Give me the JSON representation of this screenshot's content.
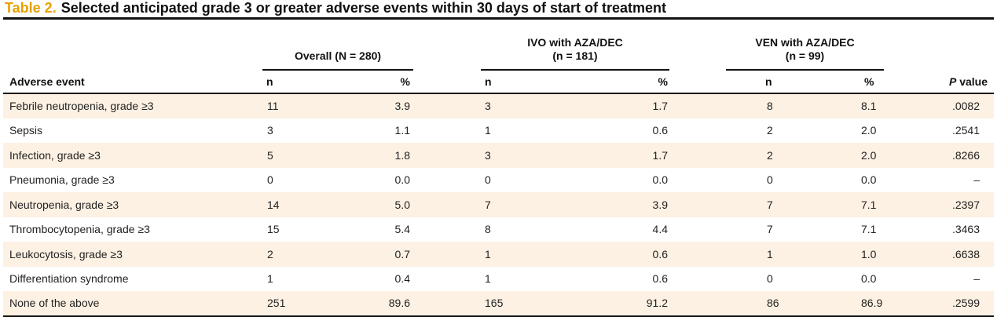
{
  "caption": {
    "label": "Table 2.",
    "title": "Selected anticipated grade 3 or greater adverse events within 30 days of start of treatment"
  },
  "header": {
    "groups": [
      {
        "line1": "Overall (N = 280)",
        "line2": ""
      },
      {
        "line1": "IVO with AZA/DEC",
        "line2": "(n = 181)"
      },
      {
        "line1": "VEN with AZA/DEC",
        "line2": "(n = 99)"
      }
    ],
    "row_label": "Adverse event",
    "n_label": "n",
    "pct_label": "%",
    "p_italic": "P",
    "p_rest": " value"
  },
  "rows": [
    {
      "event": "Febrile neutropenia, grade ≥3",
      "overall_n": "11",
      "overall_pct": "3.9",
      "ivo_n": "3",
      "ivo_pct": "1.7",
      "ven_n": "8",
      "ven_pct": "8.1",
      "p": ".0082"
    },
    {
      "event": "Sepsis",
      "overall_n": "3",
      "overall_pct": "1.1",
      "ivo_n": "1",
      "ivo_pct": "0.6",
      "ven_n": "2",
      "ven_pct": "2.0",
      "p": ".2541"
    },
    {
      "event": "Infection, grade ≥3",
      "overall_n": "5",
      "overall_pct": "1.8",
      "ivo_n": "3",
      "ivo_pct": "1.7",
      "ven_n": "2",
      "ven_pct": "2.0",
      "p": ".8266"
    },
    {
      "event": "Pneumonia, grade ≥3",
      "overall_n": "0",
      "overall_pct": "0.0",
      "ivo_n": "0",
      "ivo_pct": "0.0",
      "ven_n": "0",
      "ven_pct": "0.0",
      "p": "–"
    },
    {
      "event": "Neutropenia, grade ≥3",
      "overall_n": "14",
      "overall_pct": "5.0",
      "ivo_n": "7",
      "ivo_pct": "3.9",
      "ven_n": "7",
      "ven_pct": "7.1",
      "p": ".2397"
    },
    {
      "event": "Thrombocytopenia, grade ≥3",
      "overall_n": "15",
      "overall_pct": "5.4",
      "ivo_n": "8",
      "ivo_pct": "4.4",
      "ven_n": "7",
      "ven_pct": "7.1",
      "p": ".3463"
    },
    {
      "event": "Leukocytosis, grade ≥3",
      "overall_n": "2",
      "overall_pct": "0.7",
      "ivo_n": "1",
      "ivo_pct": "0.6",
      "ven_n": "1",
      "ven_pct": "1.0",
      "p": ".6638"
    },
    {
      "event": "Differentiation syndrome",
      "overall_n": "1",
      "overall_pct": "0.4",
      "ivo_n": "1",
      "ivo_pct": "0.6",
      "ven_n": "0",
      "ven_pct": "0.0",
      "p": "–"
    },
    {
      "event": "None of the above",
      "overall_n": "251",
      "overall_pct": "89.6",
      "ivo_n": "165",
      "ivo_pct": "91.2",
      "ven_n": "86",
      "ven_pct": "86.9",
      "p": ".2599"
    }
  ],
  "colors": {
    "caption_label": "#e8a000",
    "row_shade": "#fdf1e3",
    "rule": "#111111"
  }
}
